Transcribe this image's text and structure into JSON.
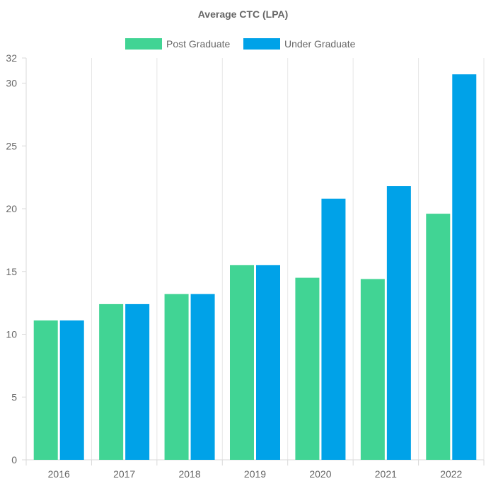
{
  "chart_data": {
    "type": "bar",
    "title": "Average CTC (LPA)",
    "xlabel": "",
    "ylabel": "",
    "categories": [
      "2016",
      "2017",
      "2018",
      "2019",
      "2020",
      "2021",
      "2022"
    ],
    "series": [
      {
        "name": "Post Graduate",
        "color": "#41d494",
        "values": [
          11.1,
          12.4,
          13.2,
          15.5,
          14.5,
          14.4,
          19.6
        ]
      },
      {
        "name": "Under Graduate",
        "color": "#00a2e8",
        "values": [
          11.1,
          12.4,
          13.2,
          15.5,
          20.8,
          21.8,
          30.7
        ]
      }
    ],
    "ylim": [
      0,
      32
    ],
    "yticks": [
      "0",
      "5",
      "10",
      "15",
      "20",
      "25",
      "30",
      "32"
    ],
    "grid": "vertical",
    "legend": "top"
  }
}
